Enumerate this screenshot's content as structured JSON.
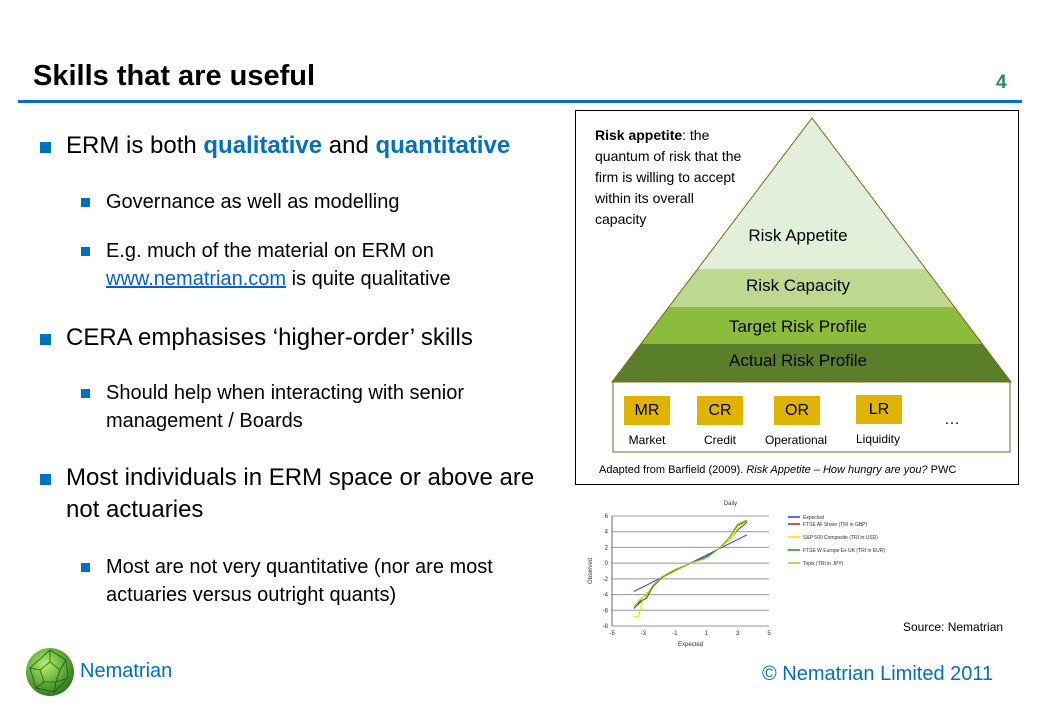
{
  "slide": {
    "title": "Skills that are useful",
    "page_number": "4",
    "brand": "Nematrian",
    "copyright": "© Nematrian Limited 2011",
    "source": "Source: Nematrian"
  },
  "bullets": {
    "b1": {
      "pre": "ERM is both ",
      "q1": "qualitative",
      "mid": " and ",
      "q2": "quantitative"
    },
    "b1a": "Governance as well as modelling",
    "b1b": {
      "pre": "E.g. much of the material on ERM on ",
      "link": "www.nematrian.com",
      "post": " is quite qualitative"
    },
    "b2": "CERA emphasises ‘higher-order’ skills",
    "b2a": "Should help when interacting with senior management / Boards",
    "b3": "Most individuals in ERM space or above are not actuaries",
    "b3a": "Most are not very quantitative (nor are most actuaries versus outright quants)"
  },
  "pyramid": {
    "def_bold": "Risk appetite",
    "def_rest": ": the quantum of risk that the firm is willing to accept within its overall capacity",
    "layers": [
      "Risk Appetite",
      "Risk Capacity",
      "Target Risk Profile",
      "Actual Risk Profile"
    ],
    "layer_colors": [
      "#e2efd9",
      "#bcd98f",
      "#8cbc3c",
      "#5a7f2a"
    ],
    "risks": [
      {
        "code": "MR",
        "label": "Market"
      },
      {
        "code": "CR",
        "label": "Credit"
      },
      {
        "code": "OR",
        "label": "Operational"
      },
      {
        "code": "LR",
        "label": "Liquidity"
      }
    ],
    "ellipsis": "…",
    "citation": {
      "pre": "Adapted from Barfield (2009). ",
      "italic": "Risk Appetite – How hungry are you?",
      "post": " PWC"
    }
  },
  "chart_data": {
    "type": "line",
    "title": "Daily",
    "xlabel": "Expected",
    "ylabel": "Observed",
    "xlim": [
      -5,
      5
    ],
    "ylim": [
      -8,
      6
    ],
    "xticks": [
      -5,
      -3,
      -1,
      1,
      3,
      5
    ],
    "yticks": [
      6,
      4,
      2,
      0,
      -2,
      -4,
      -6,
      -8
    ],
    "grid": "horizontal",
    "legend": "right",
    "series": [
      {
        "name": "Expected",
        "color": "#3333ff",
        "x": [
          -3.6,
          3.6
        ],
        "y": [
          -3.6,
          3.6
        ]
      },
      {
        "name": "FTSE All Share (TRI in GBP)",
        "color": "#b22222",
        "x": [
          -3.6,
          -3.2,
          -2.8,
          -2.4,
          -1.8,
          -1,
          0,
          1,
          1.8,
          2.5,
          3,
          3.6
        ],
        "y": [
          -5.7,
          -5,
          -4.4,
          -3,
          -1.8,
          -1,
          0,
          0.8,
          1.8,
          3,
          4.2,
          5.2
        ]
      },
      {
        "name": "S&P 500 Composite (TRI in USD)",
        "color": "#ffd700",
        "x": [
          -3.6,
          -3.3,
          -3.1,
          -2.6,
          -1.8,
          -1,
          0,
          1,
          1.8,
          2.6,
          3.1,
          3.6
        ],
        "y": [
          -6.8,
          -6.8,
          -5,
          -3.5,
          -1.8,
          -1,
          0,
          0.7,
          1.8,
          3.2,
          4.7,
          5.4
        ]
      },
      {
        "name": "FTSE W Europe Ex UK (TRI in EUR)",
        "color": "#228b22",
        "x": [
          -3.6,
          -3.2,
          -2.8,
          -2.4,
          -1.8,
          -1,
          0,
          1,
          1.8,
          2.5,
          3,
          3.6
        ],
        "y": [
          -5.8,
          -4.8,
          -4.5,
          -3,
          -1.8,
          -0.9,
          0,
          0.8,
          1.8,
          3.3,
          4.8,
          5.4
        ]
      },
      {
        "name": "Topix (TRI in JPY)",
        "color": "#9acd32",
        "x": [
          -3.6,
          -3.2,
          -2.8,
          -2.4,
          -1.8,
          -1,
          0,
          1,
          1.8,
          2.5,
          3,
          3.6
        ],
        "y": [
          -5.5,
          -4.6,
          -4,
          -2.8,
          -1.7,
          -0.8,
          0,
          0.6,
          1.8,
          3.4,
          5,
          5.5
        ]
      }
    ]
  }
}
